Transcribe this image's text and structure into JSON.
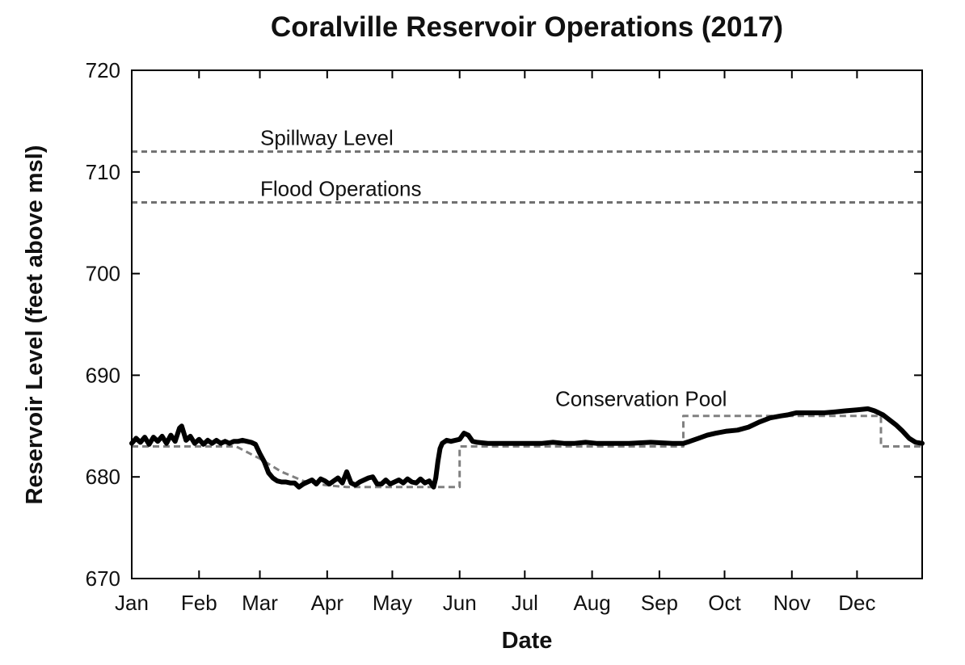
{
  "chart_data": {
    "type": "line",
    "title": "Coralville Reservoir Operations (2017)",
    "xlabel": "Date",
    "ylabel": "Reservoir Level (feet above msl)",
    "x_range_day_of_year": [
      1,
      365
    ],
    "ylim": [
      670,
      720
    ],
    "y_ticks": [
      670,
      680,
      690,
      700,
      710,
      720
    ],
    "x_ticks": [
      {
        "label": "Jan",
        "day": 1
      },
      {
        "label": "Feb",
        "day": 32
      },
      {
        "label": "Mar",
        "day": 60
      },
      {
        "label": "Apr",
        "day": 91
      },
      {
        "label": "May",
        "day": 121
      },
      {
        "label": "Jun",
        "day": 152
      },
      {
        "label": "Jul",
        "day": 182
      },
      {
        "label": "Aug",
        "day": 213
      },
      {
        "label": "Sep",
        "day": 244
      },
      {
        "label": "Oct",
        "day": 274
      },
      {
        "label": "Nov",
        "day": 305
      },
      {
        "label": "Dec",
        "day": 335
      }
    ],
    "grid": false,
    "reference_lines": [
      {
        "label": "Spillway Level",
        "value": 712
      },
      {
        "label": "Flood Operations",
        "value": 707
      }
    ],
    "series": [
      {
        "name": "",
        "style": "solid-thick",
        "color": "#000000",
        "x_day": [
          1,
          3,
          5,
          7,
          9,
          11,
          13,
          15,
          17,
          19,
          21,
          23,
          24,
          26,
          28,
          30,
          32,
          34,
          36,
          38,
          40,
          42,
          44,
          46,
          48,
          50,
          52,
          54,
          56,
          58,
          60,
          62,
          64,
          66,
          68,
          70,
          72,
          74,
          76,
          78,
          80,
          82,
          84,
          86,
          88,
          90,
          92,
          94,
          96,
          98,
          100,
          102,
          104,
          106,
          108,
          110,
          112,
          114,
          116,
          118,
          120,
          122,
          124,
          126,
          128,
          130,
          132,
          134,
          136,
          138,
          140,
          141,
          142,
          143,
          144,
          146,
          148,
          150,
          152,
          154,
          156,
          158,
          160,
          165,
          170,
          175,
          180,
          185,
          190,
          195,
          200,
          205,
          210,
          215,
          220,
          230,
          240,
          250,
          255,
          258,
          262,
          266,
          270,
          275,
          280,
          285,
          290,
          295,
          300,
          303,
          305,
          307,
          310,
          315,
          320,
          325,
          330,
          335,
          340,
          343,
          345,
          347,
          350,
          353,
          356,
          359,
          362,
          365
        ],
        "y": [
          683.3,
          683.8,
          683.4,
          683.9,
          683.2,
          683.9,
          683.5,
          684.0,
          683.3,
          684.1,
          683.5,
          684.8,
          685.0,
          683.6,
          684.0,
          683.3,
          683.7,
          683.2,
          683.6,
          683.3,
          683.6,
          683.3,
          683.5,
          683.3,
          683.5,
          683.5,
          683.6,
          683.5,
          683.4,
          683.2,
          682.3,
          681.5,
          680.4,
          679.9,
          679.6,
          679.5,
          679.5,
          679.4,
          679.4,
          679.0,
          679.3,
          679.5,
          679.7,
          679.3,
          679.8,
          679.6,
          679.3,
          679.6,
          679.9,
          679.4,
          680.5,
          679.4,
          679.2,
          679.5,
          679.7,
          679.9,
          680.0,
          679.3,
          679.3,
          679.7,
          679.3,
          679.5,
          679.7,
          679.4,
          679.8,
          679.5,
          679.4,
          679.8,
          679.4,
          679.6,
          679.0,
          679.9,
          681.5,
          682.8,
          683.3,
          683.6,
          683.5,
          683.6,
          683.7,
          684.3,
          684.1,
          683.5,
          683.4,
          683.3,
          683.3,
          683.3,
          683.3,
          683.3,
          683.3,
          683.4,
          683.3,
          683.3,
          683.4,
          683.3,
          683.3,
          683.3,
          683.4,
          683.3,
          683.3,
          683.5,
          683.8,
          684.1,
          684.3,
          684.5,
          684.6,
          684.9,
          685.4,
          685.8,
          686.0,
          686.1,
          686.2,
          686.3,
          686.3,
          686.3,
          686.3,
          686.4,
          686.5,
          686.6,
          686.7,
          686.5,
          686.3,
          686.1,
          685.6,
          685.1,
          684.5,
          683.8,
          683.4,
          683.3
        ]
      },
      {
        "name": "Conservation Pool",
        "style": "dashed",
        "color": "#808080",
        "x_day": [
          1,
          49,
          60,
          70,
          80,
          90,
          100,
          110,
          120,
          130,
          140,
          152,
          152,
          255,
          255,
          346,
          346,
          365
        ],
        "y": [
          683.0,
          683.0,
          681.8,
          680.5,
          679.6,
          679.2,
          679.0,
          679.0,
          679.0,
          679.0,
          679.0,
          679.0,
          683.0,
          683.0,
          686.0,
          686.0,
          683.0,
          683.0
        ]
      }
    ]
  }
}
